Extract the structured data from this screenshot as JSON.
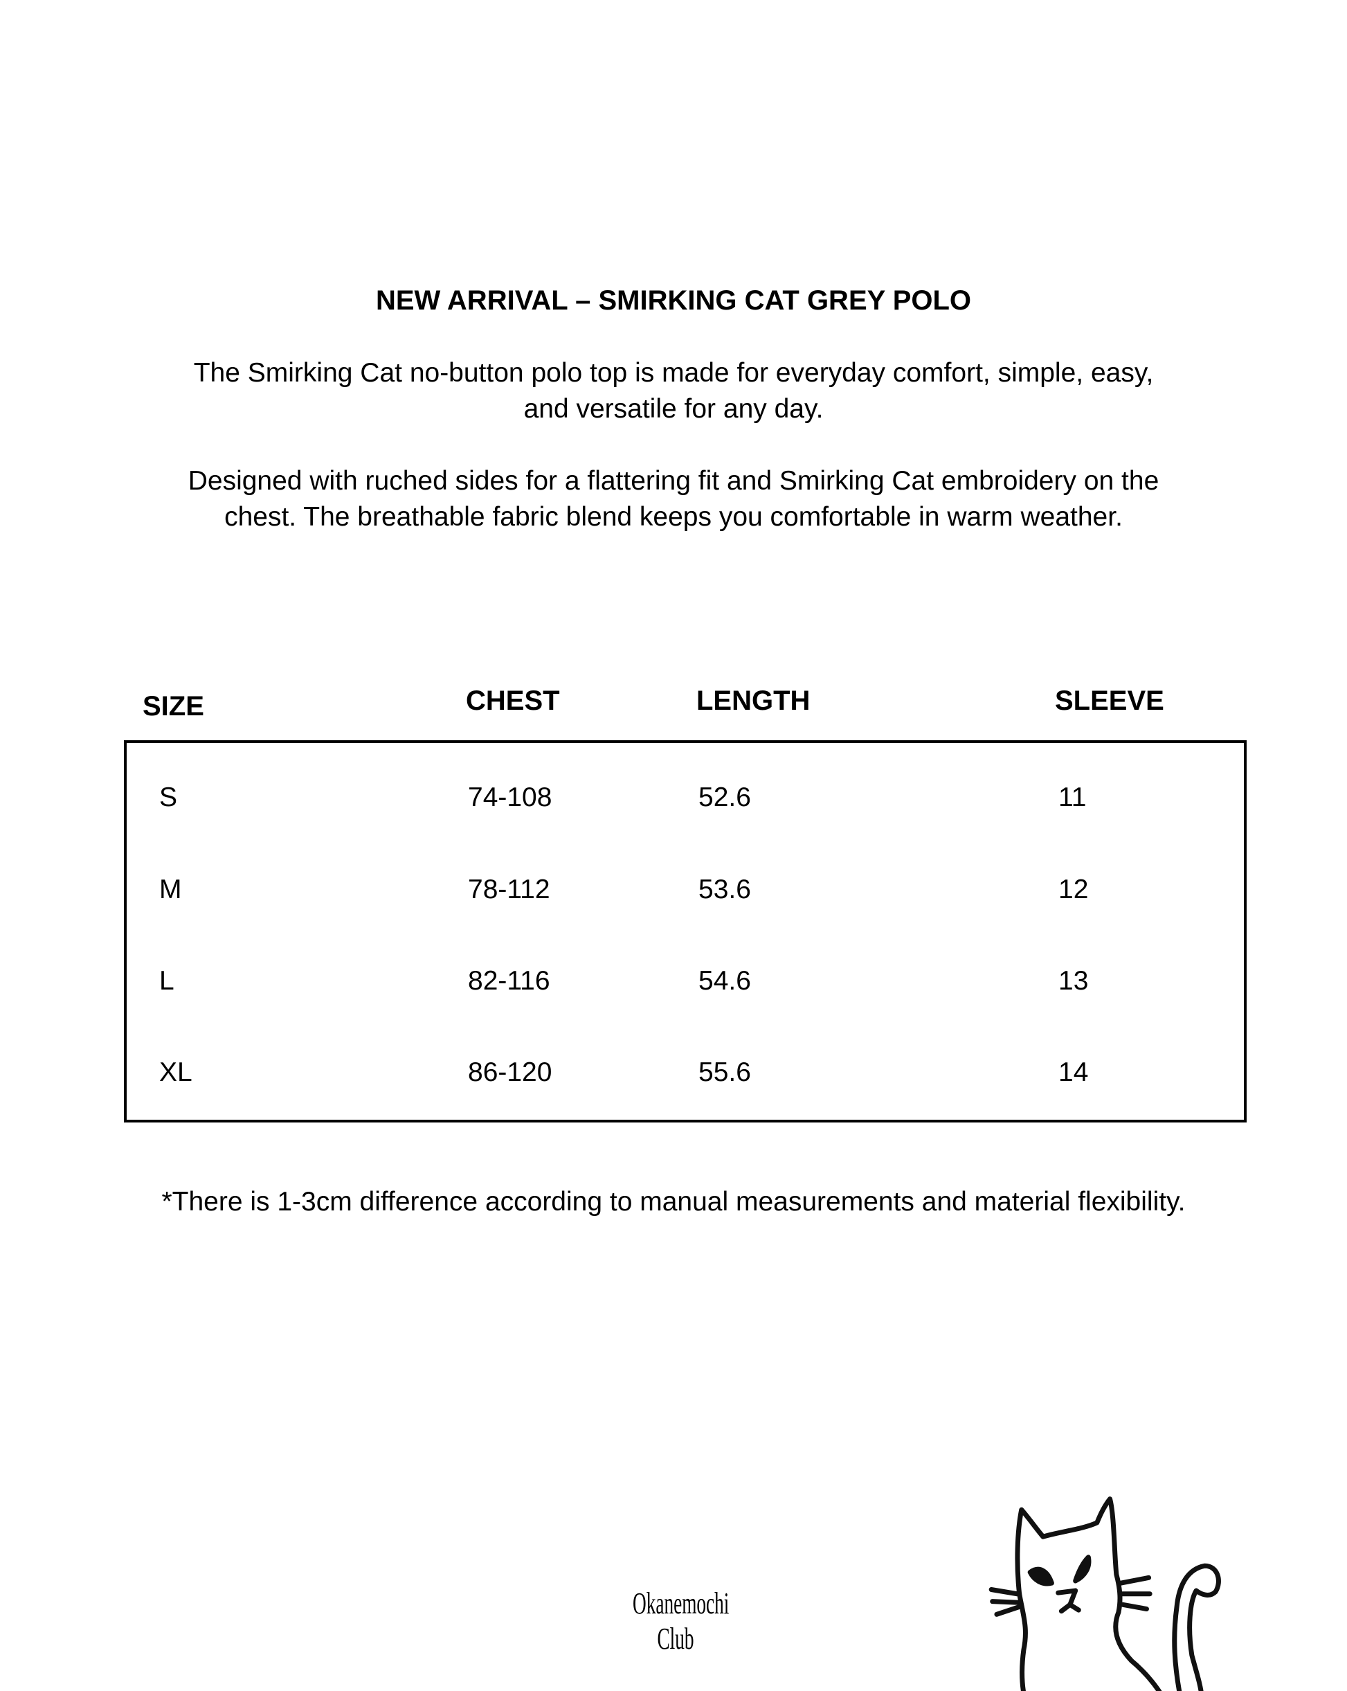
{
  "title": "NEW ARRIVAL – SMIRKING CAT GREY POLO",
  "description": {
    "p1_line1": "The Smirking Cat no-button polo top is made for everyday comfort, simple, easy,",
    "p1_line2": "and versatile for any day.",
    "p2_line1": "Designed with ruched sides for a flattering fit and Smirking Cat embroidery on the",
    "p2_line2": "chest. The breathable fabric blend keeps you comfortable in warm weather."
  },
  "size_table": {
    "headers": [
      "SIZE",
      "CHEST",
      "LENGTH",
      "SLEEVE"
    ],
    "rows": [
      [
        "S",
        "74-108",
        "52.6",
        "11"
      ],
      [
        "M",
        "78-112",
        "53.6",
        "12"
      ],
      [
        "L",
        "82-116",
        "54.6",
        "13"
      ],
      [
        "XL",
        "86-120",
        "55.6",
        "14"
      ]
    ]
  },
  "footnote": "*There is 1-3cm difference according to manual measurements and material flexibility.",
  "brand": "Okanemochi Club",
  "illustration": "cat-line-drawing"
}
